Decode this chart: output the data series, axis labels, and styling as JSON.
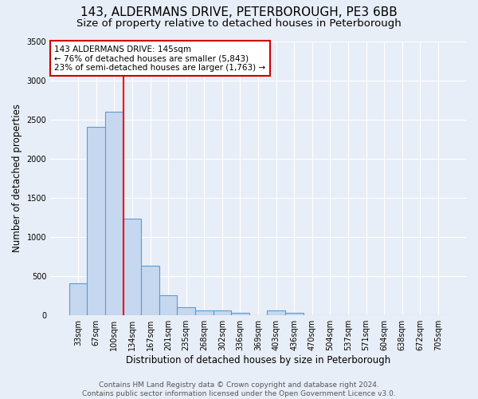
{
  "title": "143, ALDERMANS DRIVE, PETERBOROUGH, PE3 6BB",
  "subtitle": "Size of property relative to detached houses in Peterborough",
  "xlabel": "Distribution of detached houses by size in Peterborough",
  "ylabel": "Number of detached properties",
  "categories": [
    "33sqm",
    "67sqm",
    "100sqm",
    "134sqm",
    "167sqm",
    "201sqm",
    "235sqm",
    "268sqm",
    "302sqm",
    "336sqm",
    "369sqm",
    "403sqm",
    "436sqm",
    "470sqm",
    "504sqm",
    "537sqm",
    "571sqm",
    "604sqm",
    "638sqm",
    "672sqm",
    "705sqm"
  ],
  "values": [
    400,
    2400,
    2600,
    1230,
    630,
    250,
    100,
    60,
    55,
    30,
    0,
    55,
    30,
    0,
    0,
    0,
    0,
    0,
    0,
    0,
    0
  ],
  "bar_color": "#c5d8f0",
  "bar_edge_color": "#5b9bd5",
  "background_color": "#e8eef7",
  "grid_color": "#ffffff",
  "ylim": [
    0,
    3500
  ],
  "yticks": [
    0,
    500,
    1000,
    1500,
    2000,
    2500,
    3000,
    3500
  ],
  "annotation_text": "143 ALDERMANS DRIVE: 145sqm\n← 76% of detached houses are smaller (5,843)\n23% of semi-detached houses are larger (1,763) →",
  "annotation_box_color": "#ffffff",
  "annotation_box_edge": "#cc0000",
  "red_line_x": 2.5,
  "footer": "Contains HM Land Registry data © Crown copyright and database right 2024.\nContains public sector information licensed under the Open Government Licence v3.0.",
  "title_fontsize": 11,
  "subtitle_fontsize": 9.5,
  "axis_label_fontsize": 8.5,
  "tick_fontsize": 7,
  "annotation_fontsize": 7.5,
  "footer_fontsize": 6.5
}
